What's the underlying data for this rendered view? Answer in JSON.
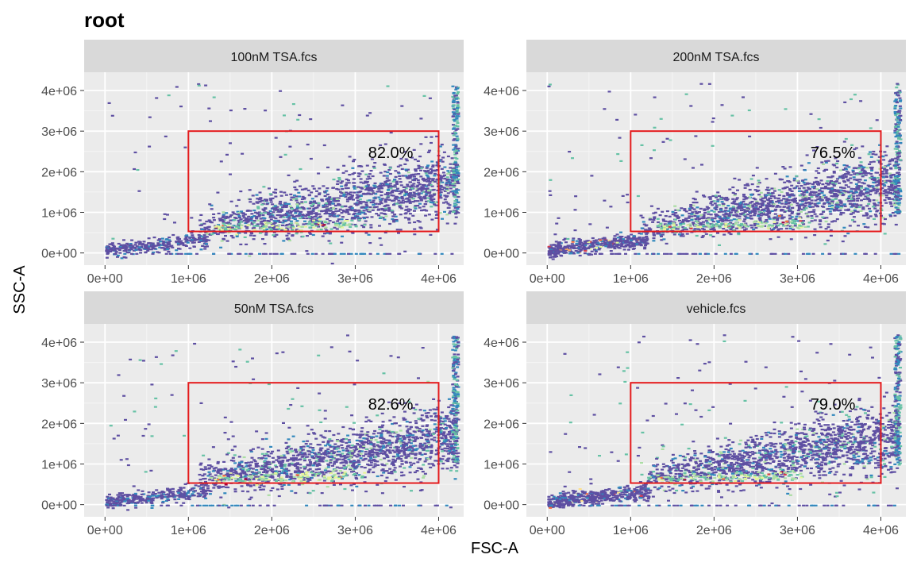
{
  "chart_data": {
    "type": "heatmap",
    "title": "root",
    "xlabel": "FSC-A",
    "ylabel": "SSC-A",
    "xlim": [
      -250000,
      4300000
    ],
    "ylim": [
      -300000,
      4450000
    ],
    "x_ticks": [
      0,
      1000000,
      2000000,
      3000000,
      4000000
    ],
    "x_tick_labels": [
      "0e+00",
      "1e+06",
      "2e+06",
      "3e+06",
      "4e+06"
    ],
    "y_ticks": [
      0,
      1000000,
      2000000,
      3000000,
      4000000
    ],
    "y_tick_labels": [
      "0e+00",
      "1e+06",
      "2e+06",
      "3e+06",
      "4e+06"
    ],
    "grid": true,
    "gate_color": "#e41a1c",
    "palette": [
      "#5e4fa2",
      "#3288bd",
      "#66c2a5",
      "#abdda4",
      "#e6f598",
      "#fee08b",
      "#fdae61",
      "#f46d43",
      "#d53e4f",
      "#9e0142"
    ],
    "panels": [
      {
        "name": "100nM TSA.fcs",
        "gate": {
          "x": [
            1000000,
            4000000
          ],
          "y": [
            530000,
            3000000
          ]
        },
        "gate_percent": "82.0%",
        "small_debris": false
      },
      {
        "name": "200nM TSA.fcs",
        "gate": {
          "x": [
            1000000,
            4000000
          ],
          "y": [
            530000,
            3000000
          ]
        },
        "gate_percent": "76.5%",
        "small_debris": true
      },
      {
        "name": "50nM TSA.fcs",
        "gate": {
          "x": [
            1000000,
            4000000
          ],
          "y": [
            530000,
            3000000
          ]
        },
        "gate_percent": "82.6%",
        "small_debris": false
      },
      {
        "name": "vehicle.fcs",
        "gate": {
          "x": [
            1000000,
            4000000
          ],
          "y": [
            530000,
            3000000
          ]
        },
        "gate_percent": "79.0%",
        "small_debris": true
      }
    ]
  }
}
